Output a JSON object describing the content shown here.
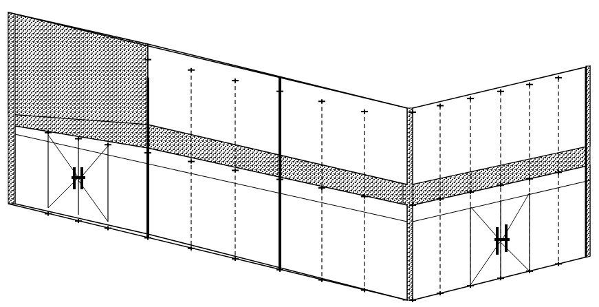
{
  "drawing": {
    "subject": "glass-storefront-elevation",
    "colors": {
      "line": "#000000",
      "background": "#ffffff",
      "texture": "#000000"
    },
    "icons": [
      "door-handle-icon",
      "spider-fitting-icon"
    ]
  }
}
